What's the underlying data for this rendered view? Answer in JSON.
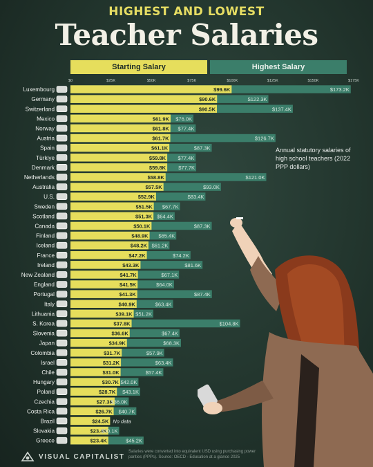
{
  "header": {
    "supertitle": "HIGHEST AND LOWEST",
    "title": "Teacher Salaries"
  },
  "legend": {
    "starting": "Starting Salary",
    "highest": "Highest Salary"
  },
  "annotation": "Annual statutory salaries of high school teachers (2022 PPP dollars)",
  "footer": {
    "brand": "VISUAL CAPITALIST",
    "source": "Salaries were converted into equivalent USD using purchasing power parities (PPPs). Source: OECD - Education at a glance 2025"
  },
  "colors": {
    "starting": "#e6de5c",
    "highest": "#3b7e6a",
    "background": "#22352d",
    "title_accent": "#e6dd63"
  },
  "chart_data": {
    "type": "bar",
    "orientation": "horizontal",
    "xlim": [
      0,
      175000
    ],
    "x_ticks": [
      "$0",
      "$25K",
      "$50K",
      "$75K",
      "$100K",
      "$125K",
      "$150K",
      "$175K"
    ],
    "x_tick_values": [
      0,
      25000,
      50000,
      75000,
      100000,
      125000,
      150000,
      175000
    ],
    "categories": [
      "Luxembourg",
      "Germany",
      "Switzerland",
      "Mexico",
      "Norway",
      "Austria",
      "Spain",
      "Türkiye",
      "Denmark",
      "Netherlands",
      "Australia",
      "U.S.",
      "Sweden",
      "Scotland",
      "Canada",
      "Finland",
      "Iceland",
      "France",
      "Ireland",
      "New Zealand",
      "England",
      "Portugal",
      "Italy",
      "Lithuania",
      "S. Korea",
      "Slovenia",
      "Japan",
      "Colombia",
      "Israel",
      "Chile",
      "Hungary",
      "Poland",
      "Czechia",
      "Costa Rica",
      "Brazil",
      "Slovakia",
      "Greece"
    ],
    "flags": [
      "luxembourg-flag-icon",
      "germany-flag-icon",
      "switzerland-flag-icon",
      "mexico-flag-icon",
      "norway-flag-icon",
      "austria-flag-icon",
      "spain-flag-icon",
      "turkiye-flag-icon",
      "denmark-flag-icon",
      "netherlands-flag-icon",
      "australia-flag-icon",
      "us-flag-icon",
      "sweden-flag-icon",
      "scotland-flag-icon",
      "canada-flag-icon",
      "finland-flag-icon",
      "iceland-flag-icon",
      "france-flag-icon",
      "ireland-flag-icon",
      "new-zealand-flag-icon",
      "england-flag-icon",
      "portugal-flag-icon",
      "italy-flag-icon",
      "lithuania-flag-icon",
      "south-korea-flag-icon",
      "slovenia-flag-icon",
      "japan-flag-icon",
      "colombia-flag-icon",
      "israel-flag-icon",
      "chile-flag-icon",
      "hungary-flag-icon",
      "poland-flag-icon",
      "czechia-flag-icon",
      "costa-rica-flag-icon",
      "brazil-flag-icon",
      "slovakia-flag-icon",
      "greece-flag-icon"
    ],
    "series": [
      {
        "name": "Starting Salary",
        "values": [
          99600,
          90600,
          90500,
          61900,
          61800,
          61700,
          61100,
          59800,
          59800,
          58800,
          57500,
          52900,
          51500,
          51300,
          50100,
          48900,
          48200,
          47200,
          43300,
          41700,
          41500,
          41300,
          40900,
          39100,
          37800,
          36600,
          34900,
          31700,
          31200,
          31000,
          30700,
          28700,
          27300,
          26700,
          24500,
          23400,
          23400
        ],
        "labels": [
          "$99.6K",
          "$90.6K",
          "$90.5K",
          "$61.9K",
          "$61.8K",
          "$61.7K",
          "$61.1K",
          "$59.8K",
          "$59.8K",
          "$58.8K",
          "$57.5K",
          "$52.9K",
          "$51.5K",
          "$51.3K",
          "$50.1K",
          "$48.9K",
          "$48.2K",
          "$47.2K",
          "$43.3K",
          "$41.7K",
          "$41.5K",
          "$41.3K",
          "$40.9K",
          "$39.1K",
          "$37.8K",
          "$36.6K",
          "$34.9K",
          "$31.7K",
          "$31.2K",
          "$31.0K",
          "$30.7K",
          "$28.7K",
          "$27.3K",
          "$26.7K",
          "$24.5K",
          "$23.4K",
          "$23.4K"
        ]
      },
      {
        "name": "Highest Salary",
        "values": [
          173200,
          122300,
          137400,
          76000,
          77400,
          126700,
          87300,
          77400,
          77700,
          121000,
          93000,
          83400,
          67700,
          64400,
          87300,
          65400,
          61200,
          74200,
          81600,
          67100,
          64000,
          87400,
          63400,
          51200,
          104800,
          67400,
          68300,
          57900,
          63400,
          57400,
          42000,
          43100,
          36000,
          40700,
          null,
          30100,
          45200
        ],
        "labels": [
          "$173.2K",
          "$122.3K",
          "$137.4K",
          "$76.0K",
          "$77.4K",
          "$126.7K",
          "$87.3K",
          "$77.4K",
          "$77.7K",
          "$121.0K",
          "$93.0K",
          "$83.4K",
          "$67.7K",
          "$64.4K",
          "$87.3K",
          "$65.4K",
          "$61.2K",
          "$74.2K",
          "$81.6K",
          "$67.1K",
          "$64.0K",
          "$87.4K",
          "$63.4K",
          "$51.2K",
          "$104.8K",
          "$67.4K",
          "$68.3K",
          "$57.9K",
          "$63.4K",
          "$57.4K",
          "$42.0K",
          "$43.1K",
          "$36.0K",
          "$40.7K",
          "No data",
          "$30.1K",
          "$45.2K"
        ]
      }
    ]
  }
}
